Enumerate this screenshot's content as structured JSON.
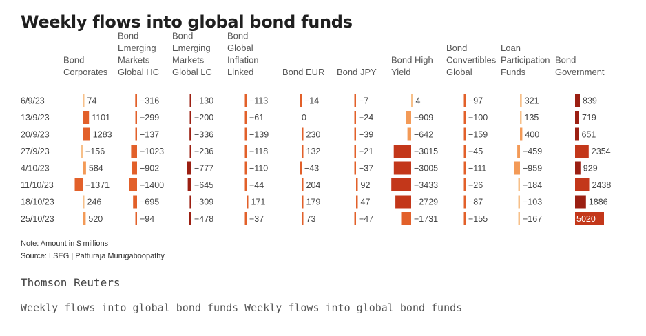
{
  "title": "Weekly flows into global bond funds",
  "note": "Note: Amount in $ millions",
  "source": "Source: LSEG | Patturaja Murugaboopathy",
  "brand": "Thomson Reuters",
  "caption": "Weekly flows into global bond funds Weekly flows into global bond funds",
  "colors": {
    "c1": "#f7c08a",
    "c2": "#f39a57",
    "c3": "#e2602a",
    "c4": "#c3371a",
    "c5": "#9b1f12"
  },
  "chart_data": {
    "type": "table",
    "rows": [
      "6/9/23",
      "13/9/23",
      "20/9/23",
      "27/9/23",
      "4/10/23",
      "11/10/23",
      "18/10/23",
      "25/10/23"
    ],
    "columns": [
      {
        "header": [
          "Bond",
          "Corporates"
        ],
        "values": [
          74,
          1101,
          1283,
          -156,
          584,
          -1371,
          246,
          520
        ]
      },
      {
        "header": [
          "Bond",
          "Emerging",
          "Markets",
          "Global HC"
        ],
        "values": [
          -316,
          -299,
          -137,
          -1023,
          -902,
          -1400,
          -695,
          -94
        ]
      },
      {
        "header": [
          "Bond",
          "Emerging",
          "Markets",
          "Global LC"
        ],
        "values": [
          -130,
          -200,
          -336,
          -236,
          -777,
          -645,
          -309,
          -478
        ]
      },
      {
        "header": [
          "Bond",
          "Global",
          "Inflation",
          "Linked"
        ],
        "values": [
          -113,
          -61,
          -139,
          -118,
          -110,
          -44,
          171,
          -37
        ]
      },
      {
        "header": [
          "Bond EUR"
        ],
        "values": [
          -14,
          0,
          230,
          132,
          -43,
          204,
          179,
          73
        ]
      },
      {
        "header": [
          "Bond JPY"
        ],
        "values": [
          -7,
          -24,
          -39,
          -21,
          -37,
          92,
          47,
          -47
        ]
      },
      {
        "header": [
          "Bond High",
          "Yield"
        ],
        "values": [
          4,
          -909,
          -642,
          -3015,
          -3005,
          -3433,
          -2729,
          -1731
        ]
      },
      {
        "header": [
          "Bond",
          "Convertibles",
          "Global"
        ],
        "values": [
          -97,
          -100,
          -159,
          -45,
          -111,
          -26,
          -87,
          -155
        ]
      },
      {
        "header": [
          "Loan",
          "Participation",
          "Funds"
        ],
        "values": [
          321,
          135,
          400,
          -459,
          -959,
          -184,
          -103,
          -167
        ]
      },
      {
        "header": [
          "Bond",
          "Government"
        ],
        "values": [
          839,
          719,
          651,
          2354,
          929,
          2438,
          1886,
          5020
        ]
      }
    ]
  }
}
